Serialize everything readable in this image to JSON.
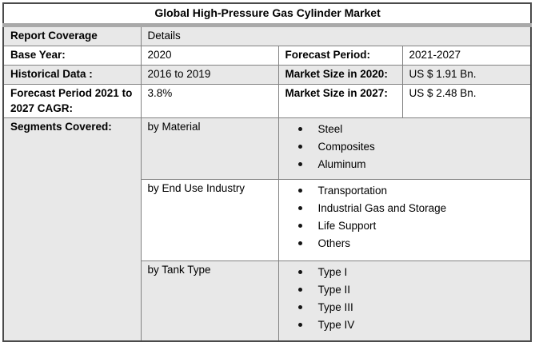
{
  "title": "Global High-Pressure Gas Cylinder Market",
  "colors": {
    "shaded_row": "#e8e8e8",
    "title_separator_band": "#a9a9a9",
    "outer_border": "#4a4a4a",
    "inner_border": "#828282",
    "bullet": "#141414"
  },
  "rows": {
    "report_coverage": {
      "label": "Report Coverage",
      "value": "Details"
    },
    "base_year": {
      "label": "Base Year:",
      "value": "2020"
    },
    "forecast_period": {
      "label": "Forecast Period:",
      "value": "2021-2027"
    },
    "historical_data": {
      "label": "Historical Data :",
      "value": "2016 to 2019"
    },
    "market_size_2020": {
      "label": "Market Size in 2020:",
      "value": "US $ 1.91 Bn."
    },
    "cagr": {
      "label": "Forecast Period 2021 to 2027 CAGR:",
      "value": "3.8%"
    },
    "market_size_2027": {
      "label": "Market Size in 2027:",
      "value": "US $ 2.48 Bn."
    },
    "segments": {
      "label": "Segments Covered:",
      "groups": [
        {
          "name": "by Material",
          "items": [
            "Steel",
            "Composites",
            "Aluminum"
          ]
        },
        {
          "name": "by End Use Industry",
          "items": [
            "Transportation",
            "Industrial Gas and Storage",
            "Life Support",
            "Others"
          ]
        },
        {
          "name": "by Tank Type",
          "items": [
            "Type I",
            "Type II",
            "Type III",
            "Type IV"
          ]
        }
      ]
    }
  }
}
